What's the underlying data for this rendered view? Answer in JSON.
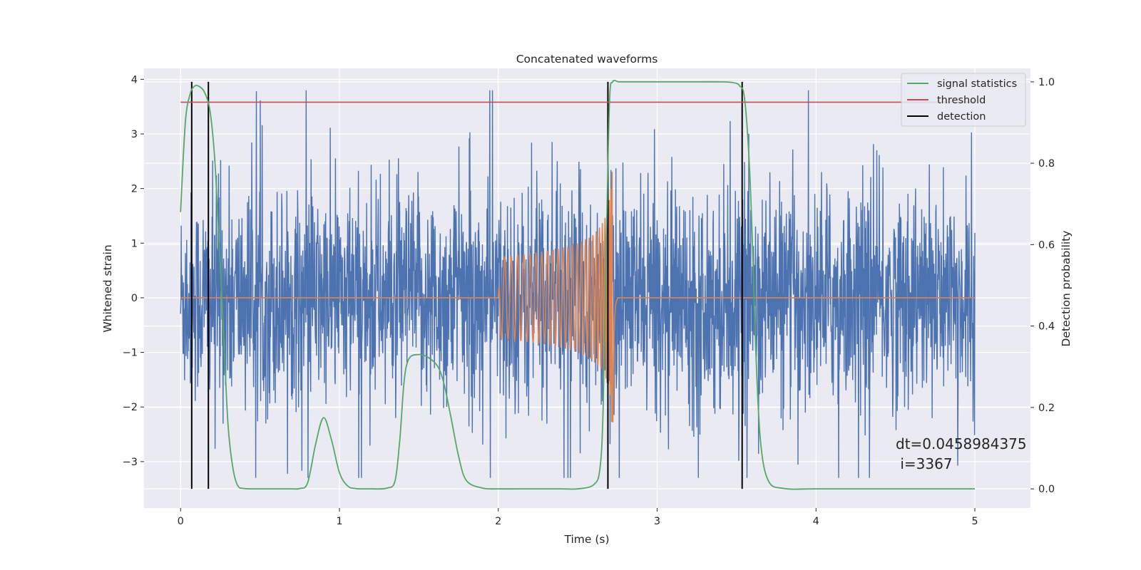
{
  "chart_data": {
    "type": "line",
    "title": "Concatenated waveforms",
    "xlabel": "Time (s)",
    "ylabel": "Whitened strain",
    "y2label": "Detection probability",
    "xlim": [
      -0.23,
      5.35
    ],
    "ylim": [
      -3.85,
      4.2
    ],
    "y2lim": [
      -0.047,
      1.033
    ],
    "x_ticks": [
      0,
      1,
      2,
      3,
      4,
      5
    ],
    "x_tick_labels": [
      "0",
      "1",
      "2",
      "3",
      "4",
      "5"
    ],
    "y_ticks": [
      -3,
      -2,
      -1,
      0,
      1,
      2,
      3,
      4
    ],
    "y_tick_labels": [
      "−3",
      "−2",
      "−1",
      "0",
      "1",
      "2",
      "3",
      "4"
    ],
    "y2_ticks": [
      0.0,
      0.2,
      0.4,
      0.6,
      0.8,
      1.0
    ],
    "y2_tick_labels": [
      "0.0",
      "0.2",
      "0.4",
      "0.6",
      "0.8",
      "1.0"
    ],
    "grid": true,
    "legend_position": "top-right",
    "legend": [
      {
        "label": "signal statistics",
        "color": "#55a868"
      },
      {
        "label": "threshold",
        "color": "#c44e52"
      },
      {
        "label": "detection",
        "color": "#000000"
      }
    ],
    "series": [
      {
        "role": "whitened strain noise",
        "color": "#4c72b0",
        "x_range": [
          0,
          5
        ],
        "approx_amplitude_range": [
          -3.3,
          3.8
        ]
      },
      {
        "role": "injected chirp waveform",
        "color": "#dd8452",
        "x_range": [
          0,
          5
        ],
        "baseline": 0,
        "chirp_start": 2.0,
        "merger_time": 2.72,
        "peak_amplitude": 2.5
      },
      {
        "name": "signal statistics",
        "color": "#55a868",
        "axis": "right",
        "x": [
          0.0,
          0.03,
          0.06,
          0.09,
          0.12,
          0.15,
          0.18,
          0.2,
          0.22,
          0.25,
          0.28,
          0.3,
          0.33,
          0.36,
          0.4,
          0.5,
          0.6,
          0.7,
          0.75,
          0.8,
          0.85,
          0.9,
          0.95,
          1.0,
          1.05,
          1.1,
          1.2,
          1.3,
          1.35,
          1.38,
          1.42,
          1.5,
          1.6,
          1.65,
          1.7,
          1.75,
          1.8,
          1.9,
          2.0,
          2.2,
          2.4,
          2.5,
          2.6,
          2.64,
          2.66,
          2.68,
          2.7,
          2.72,
          2.76,
          2.85,
          3.0,
          3.2,
          3.4,
          3.48,
          3.52,
          3.55,
          3.58,
          3.6,
          3.62,
          3.65,
          3.7,
          3.8,
          4.0,
          4.5,
          5.0
        ],
        "values": [
          0.68,
          0.9,
          0.97,
          0.99,
          0.988,
          0.975,
          0.94,
          0.88,
          0.78,
          0.55,
          0.3,
          0.15,
          0.05,
          0.008,
          0.001,
          0.0,
          0.0,
          0.0,
          0.001,
          0.015,
          0.11,
          0.175,
          0.12,
          0.04,
          0.008,
          0.001,
          0.0,
          0.002,
          0.02,
          0.12,
          0.3,
          0.33,
          0.31,
          0.27,
          0.18,
          0.08,
          0.02,
          0.002,
          0.0,
          0.0,
          0.0,
          0.0,
          0.01,
          0.05,
          0.2,
          0.6,
          0.95,
          1.0,
          1.0,
          1.0,
          1.0,
          1.0,
          1.0,
          0.998,
          0.99,
          0.96,
          0.8,
          0.6,
          0.35,
          0.12,
          0.02,
          0.001,
          0.0,
          0.0,
          0.0
        ]
      },
      {
        "name": "threshold",
        "color": "#c44e52",
        "axis": "right",
        "x": [
          0,
          5
        ],
        "values": [
          0.95,
          0.95
        ]
      }
    ],
    "detections": {
      "name": "detection",
      "color": "#000000",
      "x": [
        0.07,
        0.175,
        2.69,
        3.535
      ],
      "y_range": [
        0.0,
        1.0
      ]
    },
    "annotation": "dt=0.0458984375\n i=3367"
  }
}
